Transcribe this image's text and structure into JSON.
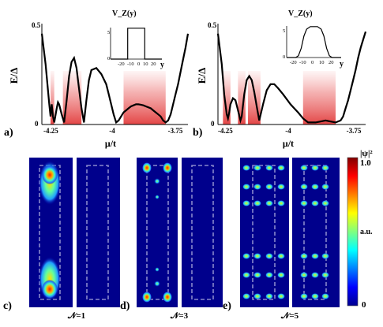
{
  "chart_data": [
    {
      "panel": "a)",
      "type": "line",
      "xlabel": "μ/t",
      "ylabel": "E/Δ",
      "xlim": [
        -4.29,
        -3.7
      ],
      "ylim": [
        0,
        0.5
      ],
      "xticks": [
        "-4.25",
        "-4",
        "-3.75"
      ],
      "yticks": [
        "0",
        "0.5"
      ],
      "x": [
        -4.29,
        -4.275,
        -4.26,
        -4.255,
        -4.25,
        -4.245,
        -4.24,
        -4.23,
        -4.225,
        -4.22,
        -4.21,
        -4.2,
        -4.19,
        -4.18,
        -4.17,
        -4.16,
        -4.15,
        -4.14,
        -4.13,
        -4.12,
        -4.11,
        -4.1,
        -4.09,
        -4.07,
        -4.05,
        -4.03,
        -4.02,
        -4.01,
        -4.0,
        -3.99,
        -3.98,
        -3.97,
        -3.96,
        -3.95,
        -3.94,
        -3.93,
        -3.92,
        -3.91,
        -3.9,
        -3.89,
        -3.88,
        -3.87,
        -3.86,
        -3.85,
        -3.84,
        -3.83,
        -3.82,
        -3.81,
        -3.8,
        -3.79,
        -3.78,
        -3.77,
        -3.76,
        -3.75,
        -3.74,
        -3.73,
        -3.72,
        -3.71,
        -3.7
      ],
      "y": [
        0.45,
        0.3,
        0.1,
        0.04,
        0.1,
        0.04,
        0.01,
        0.08,
        0.11,
        0.1,
        0.05,
        0.01,
        0.12,
        0.24,
        0.31,
        0.33,
        0.28,
        0.18,
        0.08,
        0.01,
        0.12,
        0.22,
        0.27,
        0.28,
        0.25,
        0.2,
        0.15,
        0.1,
        0.05,
        0.01,
        0.02,
        0.04,
        0.06,
        0.07,
        0.08,
        0.09,
        0.095,
        0.1,
        0.1,
        0.098,
        0.095,
        0.09,
        0.085,
        0.08,
        0.07,
        0.06,
        0.05,
        0.04,
        0.02,
        0.01,
        0.02,
        0.05,
        0.1,
        0.15,
        0.2,
        0.26,
        0.32,
        0.38,
        0.45
      ],
      "shaded_ranges": [
        [
          -4.255,
          -4.24
        ],
        [
          -4.205,
          -4.13
        ],
        [
          -3.96,
          -3.79
        ]
      ],
      "inset": {
        "title": "V_Z(y)",
        "xlabel": "y",
        "yticks": [
          "0",
          "5"
        ],
        "xticks": [
          "-20",
          "-10",
          "0",
          "10",
          "20"
        ],
        "xlim": [
          -30,
          30
        ],
        "ylim": [
          0,
          6
        ],
        "x": [
          -30,
          -10,
          -10,
          10,
          10,
          30
        ],
        "y": [
          0,
          0,
          5,
          5,
          0,
          0
        ]
      }
    },
    {
      "panel": "b)",
      "type": "line",
      "xlabel": "μ/t",
      "ylabel": "E/Δ",
      "xlim": [
        -4.29,
        -3.7
      ],
      "ylim": [
        0,
        0.5
      ],
      "xticks": [
        "-4.25",
        "-4",
        "-3.75"
      ],
      "yticks": [
        "0",
        "0.5"
      ],
      "x": [
        -4.29,
        -4.275,
        -4.265,
        -4.255,
        -4.25,
        -4.245,
        -4.24,
        -4.23,
        -4.22,
        -4.21,
        -4.2,
        -4.195,
        -4.185,
        -4.175,
        -4.165,
        -4.155,
        -4.145,
        -4.135,
        -4.125,
        -4.11,
        -4.095,
        -4.08,
        -4.065,
        -4.05,
        -4.03,
        -4.0,
        -3.97,
        -3.95,
        -3.93,
        -3.9,
        -3.88,
        -3.86,
        -3.84,
        -3.82,
        -3.8,
        -3.79,
        -3.78,
        -3.77,
        -3.76,
        -3.75,
        -3.74,
        -3.73,
        -3.72,
        -3.71,
        -3.7
      ],
      "y": [
        0.45,
        0.3,
        0.15,
        0.05,
        0.03,
        0.06,
        0.1,
        0.13,
        0.12,
        0.07,
        0.02,
        0.04,
        0.15,
        0.22,
        0.24,
        0.22,
        0.16,
        0.09,
        0.02,
        0.1,
        0.17,
        0.2,
        0.2,
        0.18,
        0.15,
        0.1,
        0.06,
        0.03,
        0.01,
        0.01,
        0.015,
        0.02,
        0.015,
        0.01,
        0.02,
        0.04,
        0.08,
        0.12,
        0.17,
        0.22,
        0.27,
        0.33,
        0.38,
        0.42,
        0.46
      ],
      "shaded_ranges": [
        [
          -4.27,
          -4.24
        ],
        [
          -4.21,
          -4.18
        ],
        [
          -4.17,
          -4.12
        ],
        [
          -3.95,
          -3.82
        ]
      ],
      "inset": {
        "title": "V_Z(y)",
        "xlabel": "y",
        "yticks": [
          "0",
          "5"
        ],
        "xticks": [
          "-20",
          "-10",
          "0",
          "10",
          "20"
        ],
        "xlim": [
          -30,
          30
        ],
        "ylim": [
          0,
          6
        ],
        "x": [
          -30,
          -20,
          -17,
          -14,
          -11,
          -8,
          -4,
          0,
          4,
          8,
          11,
          14,
          17,
          20,
          30
        ],
        "y": [
          0,
          0,
          0.3,
          1.5,
          3.5,
          4.6,
          5,
          5,
          5,
          4.6,
          3.5,
          1.5,
          0.3,
          0,
          0
        ]
      }
    },
    {
      "type": "heatmap",
      "colorbar": {
        "title": "|ψ|²",
        "ticks": [
          "1.0",
          "a.u.",
          "0"
        ]
      },
      "panels": [
        {
          "label": "c)",
          "caption": "𝒩=1",
          "maps": [
            "left",
            "right"
          ]
        },
        {
          "label": "d)",
          "caption": "𝒩=3",
          "maps": [
            "left",
            "right"
          ]
        },
        {
          "label": "e)",
          "caption": "𝒩=5",
          "maps": [
            "left",
            "right"
          ]
        }
      ]
    }
  ]
}
